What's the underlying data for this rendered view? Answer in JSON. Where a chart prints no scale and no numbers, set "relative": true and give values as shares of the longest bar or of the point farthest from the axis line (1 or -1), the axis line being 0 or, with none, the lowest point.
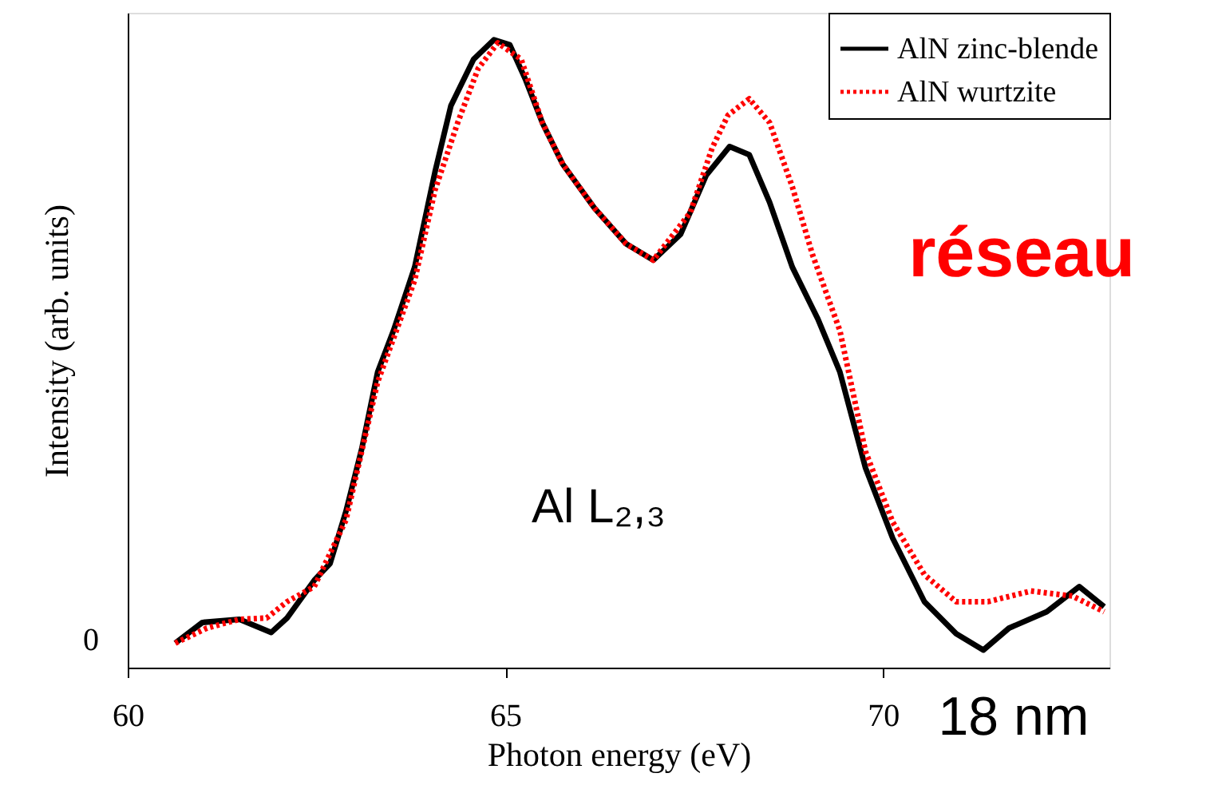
{
  "chart_data": {
    "type": "line",
    "relative": true,
    "xlabel": "Photon energy (eV)",
    "ylabel": "Intensity (arb. units)",
    "xlim": [
      60,
      73
    ],
    "xticks": [
      60,
      65,
      70
    ],
    "legend": "top right",
    "grid": false,
    "marker": "none",
    "annotations": [
      "0",
      "Al L₂,₃",
      "réseau",
      "18 nm"
    ],
    "series": [
      {
        "name": "AlN zinc-blende",
        "color": "#000000",
        "line_style": "solid",
        "x": [
          60.63,
          60.99,
          61.48,
          61.9,
          62.11,
          62.47,
          62.68,
          62.89,
          63.1,
          63.31,
          63.52,
          63.8,
          64.07,
          64.28,
          64.58,
          64.85,
          65.06,
          65.27,
          65.49,
          65.76,
          66.18,
          66.6,
          66.96,
          67.32,
          67.66,
          67.97,
          68.23,
          68.5,
          68.8,
          69.14,
          69.43,
          69.77,
          70.13,
          70.55,
          70.97,
          71.33,
          71.67,
          72.17,
          72.6,
          72.93
        ],
        "values": [
          0.039,
          0.072,
          0.077,
          0.056,
          0.079,
          0.139,
          0.166,
          0.249,
          0.349,
          0.471,
          0.537,
          0.638,
          0.79,
          0.895,
          0.969,
          1.0,
          0.992,
          0.936,
          0.868,
          0.802,
          0.732,
          0.675,
          0.649,
          0.69,
          0.784,
          0.83,
          0.817,
          0.741,
          0.638,
          0.555,
          0.471,
          0.318,
          0.206,
          0.105,
          0.054,
          0.028,
          0.063,
          0.089,
          0.129,
          0.097
        ]
      },
      {
        "name": "AlN wurtzite",
        "color": "#ff0000",
        "line_style": "dotted",
        "x": [
          60.63,
          61.05,
          61.48,
          61.84,
          62.11,
          62.47,
          62.89,
          63.31,
          63.8,
          64.07,
          64.37,
          64.64,
          64.9,
          65.21,
          65.49,
          65.76,
          66.18,
          66.6,
          66.96,
          67.45,
          67.74,
          67.95,
          68.23,
          68.5,
          68.8,
          69.07,
          69.43,
          69.77,
          70.13,
          70.55,
          70.97,
          71.39,
          71.96,
          72.51,
          72.93
        ],
        "values": [
          0.039,
          0.063,
          0.077,
          0.079,
          0.105,
          0.129,
          0.235,
          0.455,
          0.617,
          0.761,
          0.868,
          0.954,
          0.995,
          0.969,
          0.868,
          0.802,
          0.732,
          0.675,
          0.649,
          0.725,
          0.828,
          0.88,
          0.906,
          0.868,
          0.766,
          0.657,
          0.537,
          0.344,
          0.232,
          0.148,
          0.105,
          0.105,
          0.122,
          0.114,
          0.089
        ]
      }
    ]
  }
}
